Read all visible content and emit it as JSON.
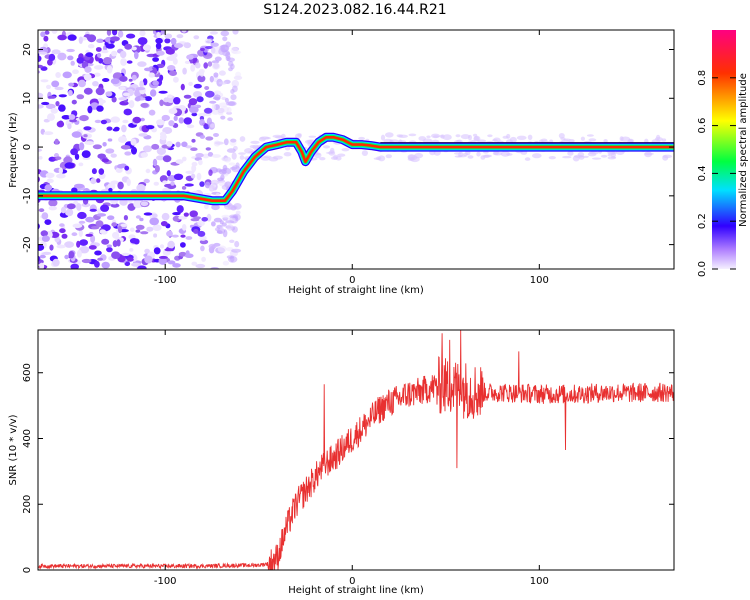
{
  "page_title": "S124.2023.082.16.44.R21",
  "colors": {
    "signal_line": "#e83030",
    "frame": "#000000",
    "background": "#ffffff"
  },
  "chart_data": [
    {
      "type": "heatmap",
      "title": "S124.2023.082.16.44.R21",
      "xlabel": "Height of straight line (km)",
      "ylabel": "Frequency (Hz)",
      "xlim": [
        -168,
        172
      ],
      "ylim": [
        -25,
        24
      ],
      "x_ticks": [
        -100,
        0,
        100
      ],
      "y_ticks": [
        -20,
        -10,
        0,
        10,
        20
      ],
      "grid": false,
      "colorbar": {
        "label": "Normalized spectral amplitude",
        "ticks": [
          0.0,
          0.2,
          0.4,
          0.6,
          0.8
        ],
        "range": [
          0,
          1
        ],
        "colormap": [
          "#f5f0ff",
          "#8a2be2",
          "#0000ff",
          "#00e0ff",
          "#00ff40",
          "#ffff00",
          "#ff3000",
          "#ff0080"
        ]
      },
      "ridge_line": {
        "x": [
          -168,
          -140,
          -120,
          -90,
          -75,
          -68,
          -64,
          -58,
          -52,
          -46,
          -40,
          -35,
          -30,
          -27,
          -25,
          -22,
          -18,
          -14,
          -10,
          -5,
          0,
          5,
          10,
          15,
          40,
          80,
          120,
          172
        ],
        "y": [
          -10,
          -10,
          -10,
          -10,
          -11,
          -11,
          -9,
          -5,
          -2,
          0,
          0.5,
          1,
          1,
          -1,
          -3,
          -1,
          1,
          2,
          2,
          1.5,
          0.5,
          0.5,
          0.3,
          0,
          0,
          0,
          0,
          0
        ]
      },
      "noise_region": {
        "x_from": -168,
        "x_to": -65
      }
    },
    {
      "type": "line",
      "xlabel": "Height of straight line (km)",
      "ylabel": "SNR (10 * v/v)",
      "xlim": [
        -168,
        172
      ],
      "ylim": [
        0,
        730
      ],
      "x_ticks": [
        -100,
        0,
        100
      ],
      "y_ticks": [
        0,
        200,
        400,
        600
      ],
      "grid": false,
      "series": [
        {
          "color": "#e83030",
          "x": [
            -168,
            -120,
            -80,
            -50,
            -44,
            -40,
            -35,
            -30,
            -25,
            -20,
            -15,
            -10,
            -5,
            0,
            5,
            10,
            15,
            20,
            25,
            30,
            35,
            40,
            45,
            50,
            55,
            60,
            65,
            70,
            80,
            90,
            100,
            110,
            120,
            130,
            140,
            150,
            160,
            172
          ],
          "y": [
            12,
            12,
            12,
            15,
            20,
            40,
            130,
            200,
            240,
            280,
            320,
            340,
            370,
            400,
            430,
            460,
            490,
            510,
            520,
            535,
            540,
            550,
            560,
            560,
            555,
            550,
            545,
            540,
            540,
            538,
            535,
            535,
            535,
            538,
            540,
            538,
            540,
            540
          ]
        }
      ],
      "spikes": [
        {
          "x": -15,
          "y": 565
        },
        {
          "x": 48,
          "y": 720
        },
        {
          "x": 52,
          "y": 700
        },
        {
          "x": 58,
          "y": 730
        },
        {
          "x": 56,
          "y": 310
        },
        {
          "x": 89,
          "y": 665
        },
        {
          "x": 114,
          "y": 365
        }
      ]
    }
  ]
}
